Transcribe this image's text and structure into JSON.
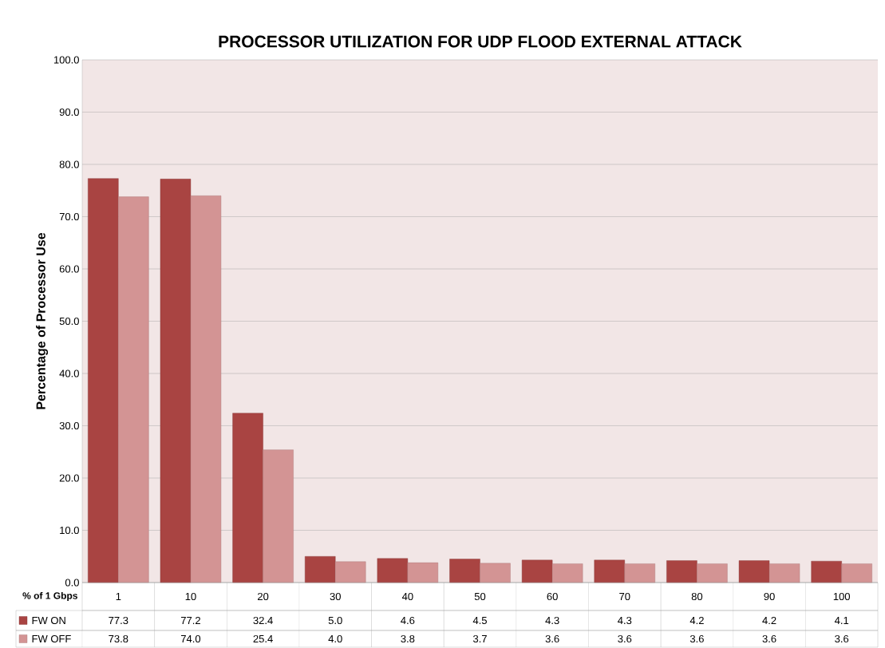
{
  "chart_data": {
    "type": "bar",
    "title": "PROCESSOR UTILIZATION FOR UDP FLOOD EXTERNAL ATTACK",
    "ylabel": "Percentage of Processor Use",
    "xlabel": "% of 1 Gbps",
    "categories": [
      "1",
      "10",
      "20",
      "30",
      "40",
      "50",
      "60",
      "70",
      "80",
      "90",
      "100"
    ],
    "series": [
      {
        "name": "FW ON",
        "color": "#a94442",
        "values": [
          77.3,
          77.2,
          32.4,
          5.0,
          4.6,
          4.5,
          4.3,
          4.3,
          4.2,
          4.2,
          4.1
        ],
        "value_labels": [
          "77.3",
          "77.2",
          "32.4",
          "5.0",
          "4.6",
          "4.5",
          "4.3",
          "4.3",
          "4.2",
          "4.2",
          "4.1"
        ]
      },
      {
        "name": "FW OFF",
        "color": "#d39494",
        "values": [
          73.8,
          74.0,
          25.4,
          4.0,
          3.8,
          3.7,
          3.6,
          3.6,
          3.6,
          3.6,
          3.6
        ],
        "value_labels": [
          "73.8",
          "74.0",
          "25.4",
          "4.0",
          "3.8",
          "3.7",
          "3.6",
          "3.6",
          "3.6",
          "3.6",
          "3.6"
        ]
      }
    ],
    "ylim": [
      0,
      100
    ],
    "yticks": [
      {
        "value": 0,
        "label": "0.0"
      },
      {
        "value": 10,
        "label": "10.0"
      },
      {
        "value": 20,
        "label": "20.0"
      },
      {
        "value": 30,
        "label": "30.0"
      },
      {
        "value": 40,
        "label": "40.0"
      },
      {
        "value": 50,
        "label": "50.0"
      },
      {
        "value": 60,
        "label": "60.0"
      },
      {
        "value": 70,
        "label": "70.0"
      },
      {
        "value": 80,
        "label": "80.0"
      },
      {
        "value": 90,
        "label": "90.0"
      },
      {
        "value": 100,
        "label": "100.0"
      }
    ],
    "grid": "y",
    "legend": "bottom"
  }
}
